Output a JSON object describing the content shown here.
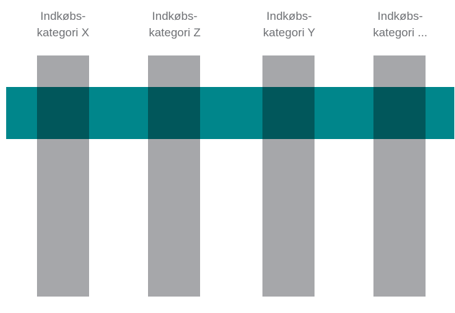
{
  "colors": {
    "column": "#a6a7aa",
    "band": "#00868b",
    "overlap": "#01575b",
    "label": "#6e7074"
  },
  "categories": [
    {
      "line1": "Indkøbs-",
      "line2": "kategori X"
    },
    {
      "line1": "Indkøbs-",
      "line2": "kategori Z"
    },
    {
      "line1": "Indkøbs-",
      "line2": "kategori Y"
    },
    {
      "line1": "Indkøbs-",
      "line2": "kategori ..."
    }
  ]
}
